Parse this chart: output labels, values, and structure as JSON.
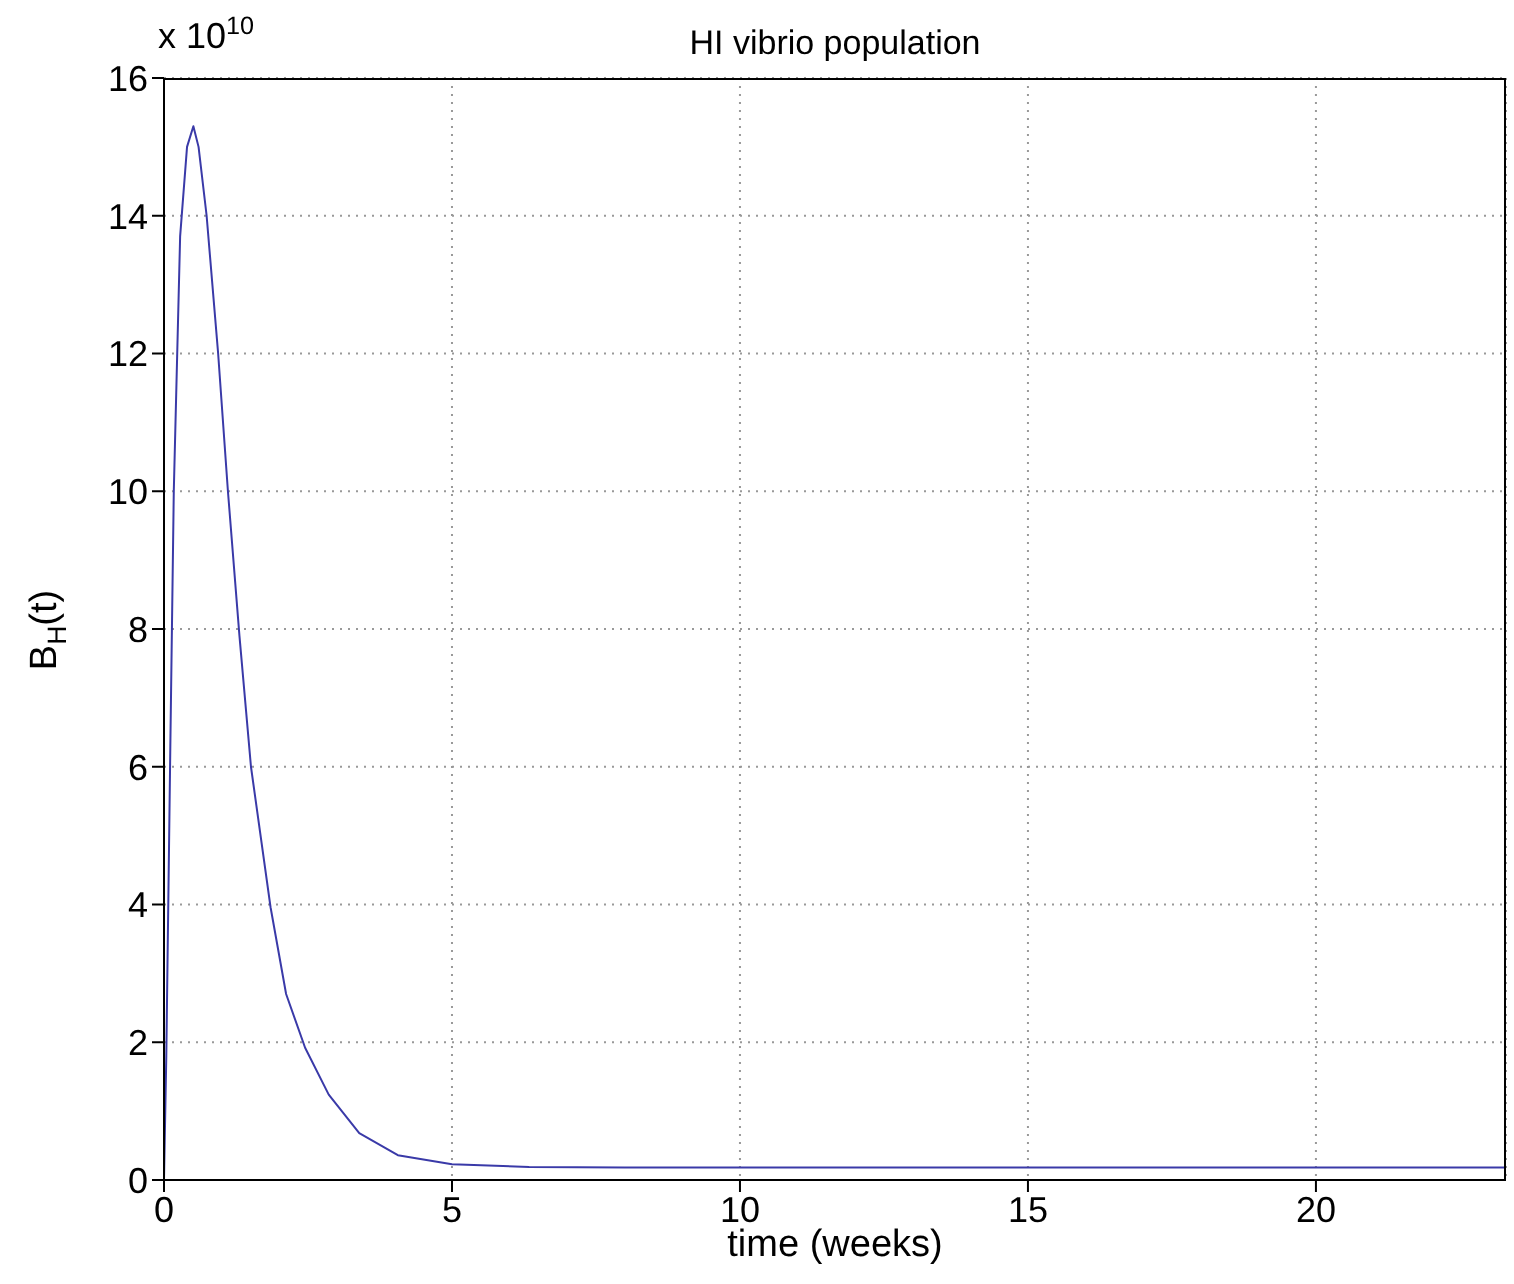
{
  "chart_data": {
    "type": "line",
    "title": "HI vibrio population",
    "xlabel": "time (weeks)",
    "ylabel": "B$_{H}$(t)",
    "annotations": [
      "x 10$^{10}$"
    ],
    "x": [
      0,
      0.04,
      0.11,
      0.17,
      0.28,
      0.4,
      0.51,
      0.6,
      0.74,
      0.94,
      1.11,
      1.31,
      1.51,
      1.85,
      2.12,
      2.45,
      2.86,
      3.39,
      4.06,
      5,
      6.34,
      8,
      12,
      16,
      20,
      23.3
    ],
    "series": [
      {
        "color": "#3a3aa8",
        "values": [
          0,
          1.8,
          6.3,
          10,
          13.7,
          15,
          15.3,
          15,
          14,
          12,
          10,
          7.9,
          6,
          3.96,
          2.7,
          1.92,
          1.24,
          0.68,
          0.36,
          0.23,
          0.19,
          0.18,
          0.18,
          0.18,
          0.18,
          0.18
        ]
      }
    ],
    "xlim": [
      0,
      23.3
    ],
    "xticks": [
      0,
      5,
      10,
      15,
      20
    ],
    "ylim": [
      0,
      16
    ],
    "yticks": [
      0,
      2,
      4,
      6,
      8,
      10,
      12,
      14,
      16
    ],
    "grid": true,
    "legend": false,
    "marker": "none",
    "line_style": "solid"
  }
}
